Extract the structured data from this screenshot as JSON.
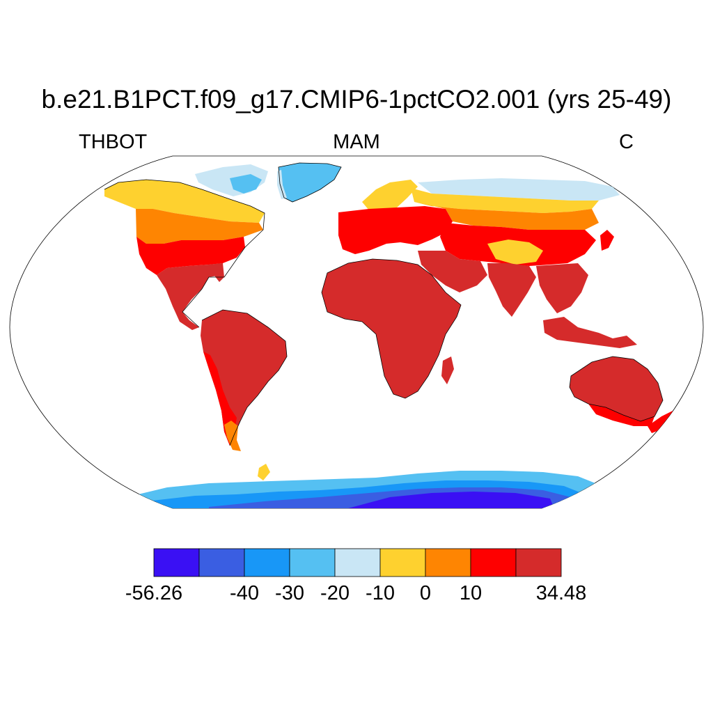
{
  "title": "b.e21.B1PCT.f09_g17.CMIP6-1pctCO2.001 (yrs 25-49)",
  "subtitle_left": "THBOT",
  "subtitle_center": "MAM",
  "subtitle_right": "C",
  "map": {
    "projection": "Robinson",
    "ocean_color": "#ffffff",
    "coastline_color": "#000000"
  },
  "colorbar": {
    "colors": [
      "#3a10f4",
      "#3a5ee2",
      "#1897f7",
      "#55c0f2",
      "#c9e6f5",
      "#fed12f",
      "#fe8502",
      "#fe0000",
      "#d52b2b"
    ],
    "labels": [
      {
        "text": "-56.26",
        "index": 0
      },
      {
        "text": "-40",
        "index": 2
      },
      {
        "text": "-30",
        "index": 3
      },
      {
        "text": "-20",
        "index": 4
      },
      {
        "text": "-10",
        "index": 5
      },
      {
        "text": "0",
        "index": 6
      },
      {
        "text": "10",
        "index": 7
      },
      {
        "text": "34.48",
        "index": 9
      }
    ]
  }
}
